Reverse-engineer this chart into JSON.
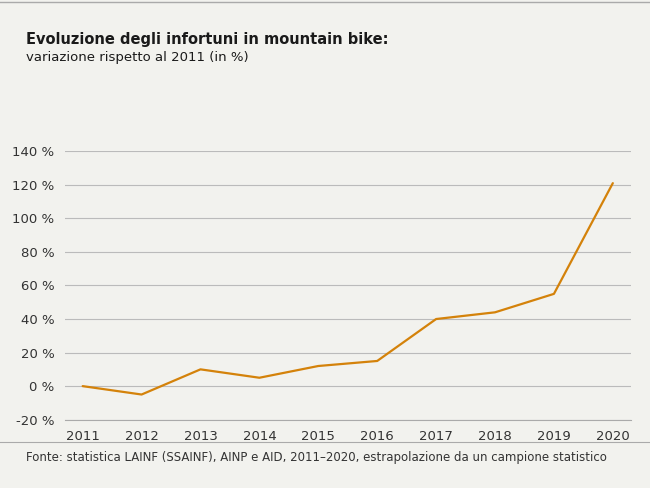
{
  "title_bold": "Evoluzione degli infortuni in mountain bike:",
  "title_sub": "variazione rispetto al 2011 (in %)",
  "x": [
    2011,
    2012,
    2013,
    2014,
    2015,
    2016,
    2017,
    2018,
    2019,
    2020
  ],
  "y": [
    0,
    -5,
    10,
    5,
    12,
    15,
    40,
    44,
    55,
    121
  ],
  "line_color": "#D4820A",
  "line_width": 1.6,
  "ylim": [
    -20,
    140
  ],
  "yticks": [
    -20,
    0,
    20,
    40,
    60,
    80,
    100,
    120,
    140
  ],
  "xticks": [
    2011,
    2012,
    2013,
    2014,
    2015,
    2016,
    2017,
    2018,
    2019,
    2020
  ],
  "grid_color": "#BBBBBB",
  "background_color": "#F2F2EE",
  "footnote": "Fonte: statistica LAINF (SSAINF), AINP e AID, 2011–2020, estrapolazione da un campione statistico",
  "title_fontsize": 10.5,
  "subtitle_fontsize": 9.5,
  "tick_fontsize": 9.5,
  "footnote_fontsize": 8.5,
  "border_color": "#AAAAAA"
}
